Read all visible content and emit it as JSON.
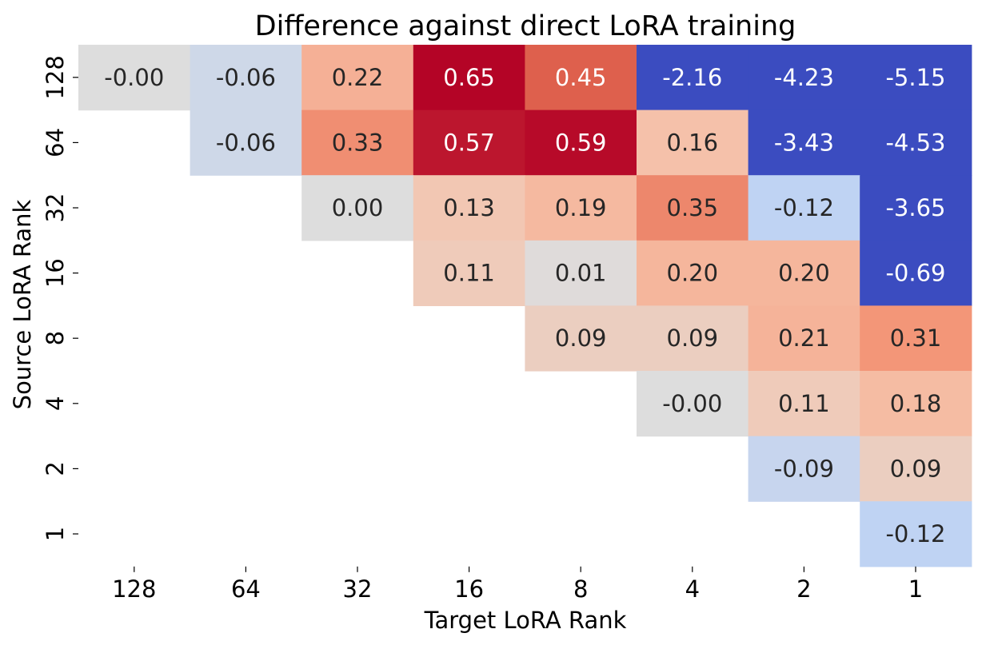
{
  "chart_data": {
    "type": "heatmap",
    "title": "Difference against direct LoRA training",
    "xlabel": "Target LoRA Rank",
    "ylabel": "Source LoRA Rank",
    "x_categories": [
      "128",
      "64",
      "32",
      "16",
      "8",
      "4",
      "2",
      "1"
    ],
    "y_categories": [
      "128",
      "64",
      "32",
      "16",
      "8",
      "4",
      "2",
      "1"
    ],
    "colormap": "coolwarm",
    "color_range": [
      -0.6,
      0.6
    ],
    "colorbar": false,
    "cells": [
      [
        -0.0,
        -0.06,
        0.22,
        0.65,
        0.45,
        -2.16,
        -4.23,
        -5.15
      ],
      [
        null,
        -0.06,
        0.33,
        0.57,
        0.59,
        0.16,
        -3.43,
        -4.53
      ],
      [
        null,
        null,
        0.0,
        0.13,
        0.19,
        0.35,
        -0.12,
        -3.65
      ],
      [
        null,
        null,
        null,
        0.11,
        0.01,
        0.2,
        0.2,
        -0.69
      ],
      [
        null,
        null,
        null,
        null,
        0.09,
        0.09,
        0.21,
        0.31
      ],
      [
        null,
        null,
        null,
        null,
        null,
        -0.0,
        0.11,
        0.18
      ],
      [
        null,
        null,
        null,
        null,
        null,
        null,
        -0.09,
        0.09
      ],
      [
        null,
        null,
        null,
        null,
        null,
        null,
        null,
        -0.12
      ]
    ],
    "annotations": [
      [
        "-0.00",
        "-0.06",
        "0.22",
        "0.65",
        "0.45",
        "-2.16",
        "-4.23",
        "-5.15"
      ],
      [
        null,
        "-0.06",
        "0.33",
        "0.57",
        "0.59",
        "0.16",
        "-3.43",
        "-4.53"
      ],
      [
        null,
        null,
        "0.00",
        "0.13",
        "0.19",
        "0.35",
        "-0.12",
        "-3.65"
      ],
      [
        null,
        null,
        null,
        "0.11",
        "0.01",
        "0.20",
        "0.20",
        "-0.69"
      ],
      [
        null,
        null,
        null,
        null,
        "0.09",
        "0.09",
        "0.21",
        "0.31"
      ],
      [
        null,
        null,
        null,
        null,
        null,
        "-0.00",
        "0.11",
        "0.18"
      ],
      [
        null,
        null,
        null,
        null,
        null,
        null,
        "-0.09",
        "0.09"
      ],
      [
        null,
        null,
        null,
        null,
        null,
        null,
        null,
        "-0.12"
      ]
    ]
  }
}
